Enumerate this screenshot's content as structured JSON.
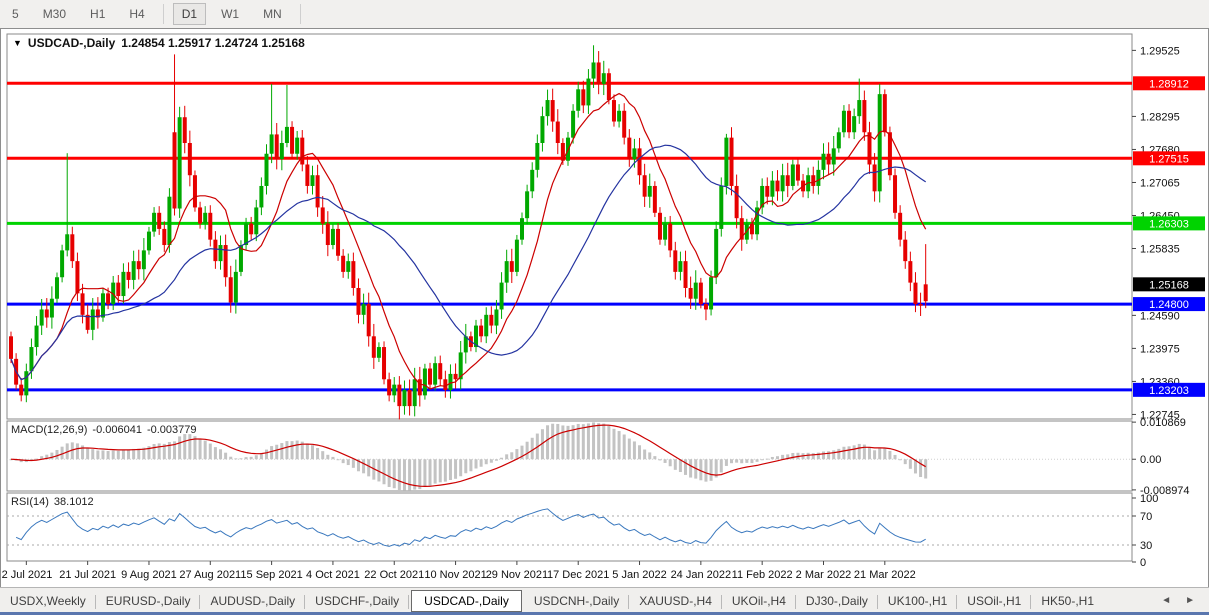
{
  "toolbar": {
    "items": [
      {
        "label": "5",
        "active": false
      },
      {
        "label": "M30",
        "active": false
      },
      {
        "label": "H1",
        "active": false
      },
      {
        "label": "H4",
        "active": false
      },
      {
        "label": "D1",
        "active": true
      },
      {
        "label": "W1",
        "active": false
      },
      {
        "label": "MN",
        "active": false
      }
    ]
  },
  "chart_header": {
    "dropdown_icon": "▼",
    "title": "USDCAD-,Daily",
    "ohlc": "1.24854 1.25917 1.24724 1.25168"
  },
  "chart_data": {
    "type": "candlestick",
    "symbol": "USDCAD-",
    "timeframe": "Daily",
    "ohlc_display": {
      "open": "1.24854",
      "high": "1.25917",
      "low": "1.24724",
      "close": "1.25168"
    },
    "price_axis": {
      "range": [
        1.2266,
        1.2983
      ],
      "ticks": [
        "1.29525",
        "1.28295",
        "1.27680",
        "1.27065",
        "1.26450",
        "1.25835",
        "1.24590",
        "1.23975",
        "1.23360",
        "1.22745"
      ]
    },
    "levels": [
      {
        "price": 1.28912,
        "label": "1.28912",
        "color": "#ff0000"
      },
      {
        "price": 1.27515,
        "label": "1.27515",
        "color": "#ff0000"
      },
      {
        "price": 1.26303,
        "label": "1.26303",
        "color": "#00d300"
      },
      {
        "price": 1.248,
        "label": "1.24800",
        "color": "#0000ff"
      },
      {
        "price": 1.23203,
        "label": "1.23203",
        "color": "#0000ff"
      }
    ],
    "current_price": {
      "price": 1.25168,
      "label": "1.25168",
      "color": "#000000"
    },
    "candles": {
      "bull_color": "#00a800",
      "bear_color": "#e60000",
      "default_wick": 0.0016,
      "force_bear": [
        179
      ],
      "closes": [
        1.2378,
        1.233,
        1.231,
        1.2355,
        1.24,
        1.244,
        1.247,
        1.2455,
        1.249,
        1.253,
        1.258,
        1.261,
        1.256,
        1.25,
        1.246,
        1.2432,
        1.247,
        1.2455,
        1.25,
        1.248,
        1.252,
        1.2495,
        1.254,
        1.2525,
        1.256,
        1.2545,
        1.258,
        1.2615,
        1.265,
        1.262,
        1.259,
        1.268,
        1.2658,
        1.2828,
        1.278,
        1.272,
        1.266,
        1.263,
        1.265,
        1.26,
        1.256,
        1.259,
        1.253,
        1.2483,
        1.254,
        1.259,
        1.263,
        1.261,
        1.266,
        1.27,
        1.276,
        1.2796,
        1.275,
        1.278,
        1.281,
        1.276,
        1.279,
        1.274,
        1.27,
        1.272,
        1.266,
        1.263,
        1.259,
        1.262,
        1.257,
        1.254,
        1.256,
        1.251,
        1.246,
        1.248,
        1.242,
        1.238,
        1.24,
        1.234,
        1.231,
        1.233,
        1.229,
        1.232,
        1.229,
        1.234,
        1.231,
        1.236,
        1.233,
        1.237,
        1.234,
        1.232,
        1.235,
        1.234,
        1.239,
        1.242,
        1.24,
        1.244,
        1.242,
        1.246,
        1.244,
        1.247,
        1.252,
        1.256,
        1.254,
        1.26,
        1.264,
        1.269,
        1.273,
        1.278,
        1.283,
        1.286,
        1.282,
        1.278,
        1.2747,
        1.279,
        1.284,
        1.288,
        1.285,
        1.29,
        1.293,
        1.289,
        1.291,
        1.286,
        1.282,
        1.284,
        1.279,
        1.275,
        1.277,
        1.272,
        1.268,
        1.27,
        1.265,
        1.26,
        1.263,
        1.258,
        1.254,
        1.256,
        1.251,
        1.249,
        1.252,
        1.248,
        1.247,
        1.253,
        1.262,
        1.27,
        1.279,
        1.27,
        1.264,
        1.26,
        1.263,
        1.261,
        1.266,
        1.27,
        1.268,
        1.271,
        1.269,
        1.272,
        1.27,
        1.274,
        1.271,
        1.269,
        1.272,
        1.27,
        1.273,
        1.276,
        1.274,
        1.277,
        1.28,
        1.284,
        1.28,
        1.283,
        1.286,
        1.28,
        1.274,
        1.269,
        1.2871,
        1.28,
        1.272,
        1.265,
        1.26,
        1.256,
        1.252,
        1.248,
        1.2477,
        1.25168
      ],
      "open_overrides": {
        "0": 1.242,
        "32": 1.28,
        "179": 1.24854
      },
      "high_overrides": {
        "11": 1.2761,
        "32": 1.2945,
        "51": 1.289,
        "54": 1.2888,
        "114": 1.2962,
        "140": 1.2797,
        "166": 1.29,
        "170": 1.289,
        "179": 1.25917
      },
      "low_overrides": {
        "15": 1.2425,
        "32": 1.2645,
        "76": 1.2265,
        "136": 1.245,
        "177": 1.2465,
        "179": 1.24724
      }
    },
    "moving_averages": [
      {
        "period": 10,
        "color": "#cc0000"
      },
      {
        "period": 30,
        "color": "#2433a0"
      }
    ],
    "macd": {
      "label": "MACD(12,26,9)",
      "value_main": "-0.006041",
      "value_signal": "-0.003779",
      "fast": 12,
      "slow": 26,
      "signal": 9,
      "range": [
        -0.0093,
        0.0112
      ],
      "ticks": [
        "0.010869",
        "0.00",
        "-0.008974"
      ],
      "histogram_color": "#c3c3c3",
      "signal_color": "#cc0000"
    },
    "rsi": {
      "label": "RSI(14)",
      "value": "38.1012",
      "period": 14,
      "range": [
        0,
        100
      ],
      "guide_levels": [
        70,
        30
      ],
      "ticks": [
        "100",
        "70",
        "30",
        "0"
      ],
      "line_color": "#3a78be"
    },
    "x_axis": {
      "labels": [
        "2 Jul 2021",
        "21 Jul 2021",
        "9 Aug 2021",
        "27 Aug 2021",
        "15 Sep 2021",
        "4 Oct 2021",
        "22 Oct 2021",
        "10 Nov 2021",
        "29 Nov 2021",
        "17 Dec 2021",
        "5 Jan 2022",
        "24 Jan 2022",
        "11 Feb 2022",
        "2 Mar 2022",
        "21 Mar 2022"
      ],
      "first_tick_index": 3,
      "tick_index_step": 12
    }
  },
  "tab_bar": {
    "scroll_left_icon": "◄",
    "scroll_right_icon": "►",
    "tabs": [
      {
        "label": "USDX,Weekly",
        "active": false
      },
      {
        "label": "EURUSD-,Daily",
        "active": false
      },
      {
        "label": "AUDUSD-,Daily",
        "active": false
      },
      {
        "label": "USDCHF-,Daily",
        "active": false
      },
      {
        "label": "USDCAD-,Daily",
        "active": true
      },
      {
        "label": "USDCNH-,Daily",
        "active": false
      },
      {
        "label": "XAUUSD-,H4",
        "active": false
      },
      {
        "label": "UKOil-,H4",
        "active": false
      },
      {
        "label": "DJ30-,Daily",
        "active": false
      },
      {
        "label": "UK100-,H1",
        "active": false
      },
      {
        "label": "USOil-,H1",
        "active": false
      },
      {
        "label": "HK50-,H1",
        "active": false
      }
    ]
  }
}
